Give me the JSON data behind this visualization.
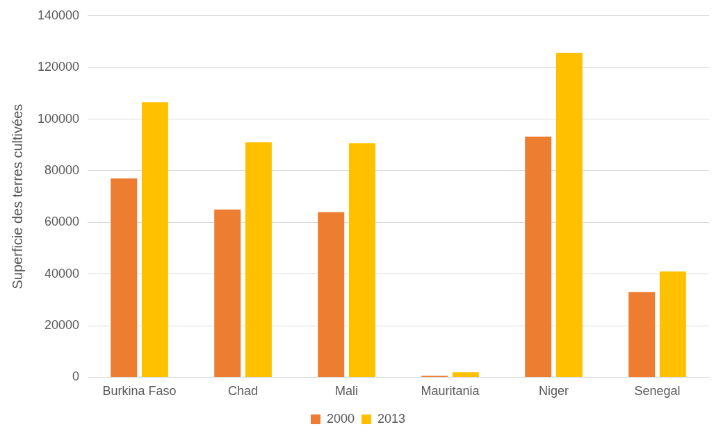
{
  "chart_data": {
    "type": "bar",
    "ylabel": "Superficie des terres cultivées",
    "categories": [
      "Burkina Faso",
      "Chad",
      "Mali",
      "Mauritania",
      "Niger",
      "Senegal"
    ],
    "series": [
      {
        "name": "2000",
        "color": "#ed7d31",
        "values": [
          77000,
          65000,
          64000,
          600,
          93200,
          33000
        ]
      },
      {
        "name": "2013",
        "color": "#ffc000",
        "values": [
          106500,
          91000,
          90700,
          1900,
          125700,
          41000
        ]
      }
    ],
    "ylim": [
      0,
      140000
    ],
    "yticks": [
      0,
      20000,
      40000,
      60000,
      80000,
      100000,
      120000,
      140000
    ],
    "grid": "y",
    "legend": "bottom"
  }
}
